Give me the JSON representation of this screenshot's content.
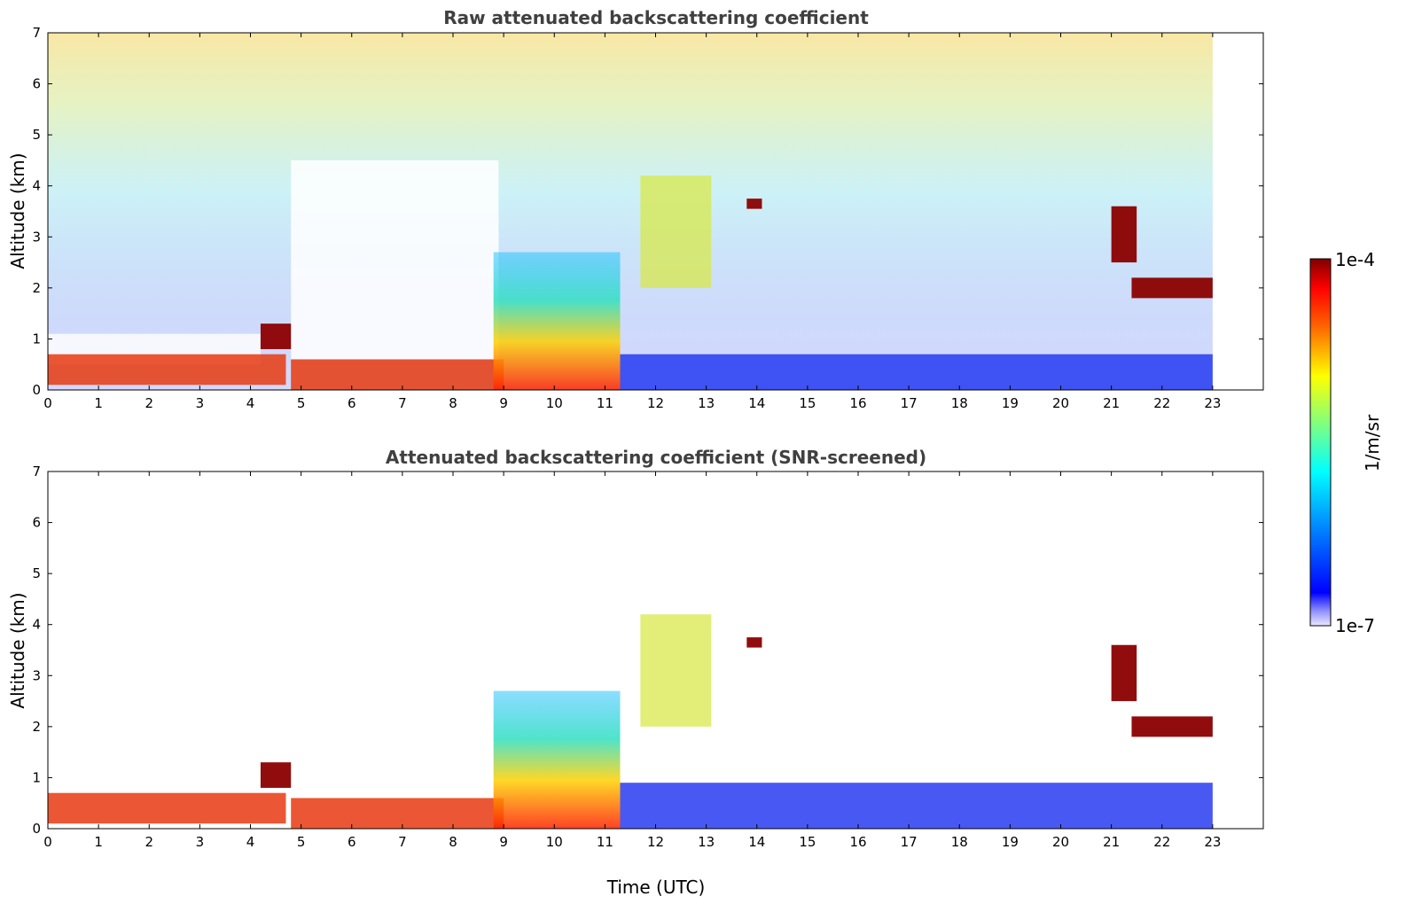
{
  "chart_data": [
    {
      "type": "heatmap",
      "title": "Raw attenuated backscattering coefficient",
      "xlabel": "",
      "ylabel": "Altitude (km)",
      "xlim": [
        0,
        24
      ],
      "ylim": [
        0,
        7
      ],
      "xticks": [
        "0",
        "1",
        "2",
        "3",
        "4",
        "5",
        "6",
        "7",
        "8",
        "9",
        "10",
        "11",
        "12",
        "13",
        "14",
        "15",
        "16",
        "17",
        "18",
        "19",
        "20",
        "21",
        "22",
        "23"
      ],
      "yticks": [
        "0",
        "1",
        "2",
        "3",
        "4",
        "5",
        "6",
        "7"
      ],
      "data_end_time": 23,
      "features": [
        {
          "name": "boundary-layer aerosol layer",
          "time": [
            0,
            4.7
          ],
          "altitude": [
            0.1,
            0.7
          ],
          "level": "high"
        },
        {
          "name": "low cloud",
          "time": [
            4.2,
            4.8
          ],
          "altitude": [
            0.8,
            1.3
          ],
          "level": "very-high"
        },
        {
          "name": "boundary-layer aerosol layer",
          "time": [
            4.8,
            9.0
          ],
          "altitude": [
            0.0,
            0.6
          ],
          "level": "high"
        },
        {
          "name": "convective plumes",
          "time": [
            8.8,
            11.3
          ],
          "altitude": [
            0.0,
            2.7
          ],
          "level": "high"
        },
        {
          "name": "mid-level cloud",
          "time": [
            11.7,
            13.1
          ],
          "altitude": [
            2.0,
            4.2
          ],
          "level": "medium"
        },
        {
          "name": "isolated cloud",
          "time": [
            13.8,
            14.1
          ],
          "altitude": [
            3.55,
            3.75
          ],
          "level": "very-high"
        },
        {
          "name": "cloud",
          "time": [
            21.0,
            21.5
          ],
          "altitude": [
            2.5,
            3.6
          ],
          "level": "very-high"
        },
        {
          "name": "cloud layer",
          "time": [
            21.4,
            23.0
          ],
          "altitude": [
            1.8,
            2.2
          ],
          "level": "very-high"
        },
        {
          "name": "clear-air background",
          "time": [
            11.3,
            23.0
          ],
          "altitude": [
            0.0,
            0.7
          ],
          "level": "low"
        }
      ]
    },
    {
      "type": "heatmap",
      "title": "Attenuated backscattering coefficient (SNR-screened)",
      "xlabel": "Time (UTC)",
      "ylabel": "Altitude (km)",
      "xlim": [
        0,
        24
      ],
      "ylim": [
        0,
        7
      ],
      "xticks": [
        "0",
        "1",
        "2",
        "3",
        "4",
        "5",
        "6",
        "7",
        "8",
        "9",
        "10",
        "11",
        "12",
        "13",
        "14",
        "15",
        "16",
        "17",
        "18",
        "19",
        "20",
        "21",
        "22",
        "23"
      ],
      "yticks": [
        "0",
        "1",
        "2",
        "3",
        "4",
        "5",
        "6",
        "7"
      ],
      "data_end_time": 23,
      "features": [
        {
          "name": "boundary-layer aerosol layer",
          "time": [
            0,
            4.7
          ],
          "altitude": [
            0.1,
            0.7
          ],
          "level": "high"
        },
        {
          "name": "low cloud",
          "time": [
            4.2,
            4.8
          ],
          "altitude": [
            0.8,
            1.3
          ],
          "level": "very-high"
        },
        {
          "name": "boundary-layer aerosol layer",
          "time": [
            4.8,
            9.0
          ],
          "altitude": [
            0.0,
            0.6
          ],
          "level": "high"
        },
        {
          "name": "convective plumes",
          "time": [
            8.8,
            11.3
          ],
          "altitude": [
            0.0,
            2.7
          ],
          "level": "high"
        },
        {
          "name": "mid-level cloud",
          "time": [
            11.7,
            13.1
          ],
          "altitude": [
            2.0,
            4.2
          ],
          "level": "medium"
        },
        {
          "name": "isolated cloud",
          "time": [
            13.8,
            14.1
          ],
          "altitude": [
            3.55,
            3.75
          ],
          "level": "very-high"
        },
        {
          "name": "cloud",
          "time": [
            21.0,
            21.5
          ],
          "altitude": [
            2.5,
            3.6
          ],
          "level": "very-high"
        },
        {
          "name": "cloud layer",
          "time": [
            21.4,
            23.0
          ],
          "altitude": [
            1.8,
            2.2
          ],
          "level": "very-high"
        },
        {
          "name": "clear-air background",
          "time": [
            11.3,
            23.0
          ],
          "altitude": [
            0.0,
            0.9
          ],
          "level": "low"
        }
      ]
    }
  ],
  "colorbar": {
    "label": "1/m/sr",
    "max_label": "1e-4",
    "min_label": "1e-7",
    "colormap": "jet",
    "scale": "log",
    "range": [
      1e-07,
      0.0001
    ]
  },
  "colors": {
    "very-high": "#8b0000",
    "high": "#e83a10",
    "medium": "#e6e34a",
    "low": "#1a30f0",
    "title_text": "#404040"
  }
}
